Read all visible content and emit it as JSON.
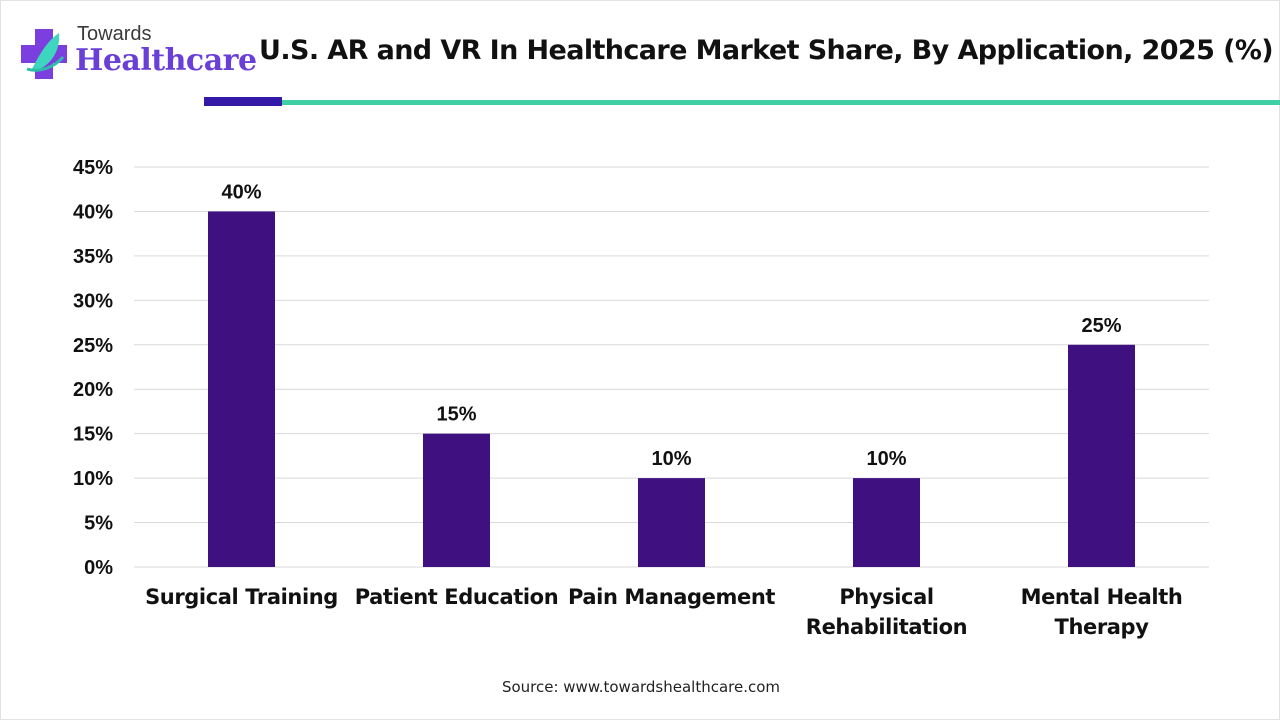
{
  "header": {
    "logo_top": "Towards",
    "logo_bottom": "Healthcare",
    "title": "U.S. AR and VR In Healthcare Market Share, By Application, 2025 (%)"
  },
  "colors": {
    "bar": "#3f1180",
    "accent_dark": "#3419a8",
    "accent_teal": "#3fcfa4",
    "logo_purple": "#6a3fd8"
  },
  "source": "Source: www.towardshealthcare.com",
  "chart_data": {
    "type": "bar",
    "title": "U.S. AR and VR In Healthcare Market Share, By Application, 2025 (%)",
    "xlabel": "",
    "ylabel": "",
    "categories": [
      [
        "Surgical Training"
      ],
      [
        "Patient Education"
      ],
      [
        "Pain Management"
      ],
      [
        "Physical",
        "Rehabilitation"
      ],
      [
        "Mental Health",
        "Therapy"
      ]
    ],
    "values": [
      40,
      15,
      10,
      10,
      25
    ],
    "data_labels": [
      "40%",
      "15%",
      "10%",
      "10%",
      "25%"
    ],
    "ylim": [
      0,
      45
    ],
    "yticks": [
      0,
      5,
      10,
      15,
      20,
      25,
      30,
      35,
      40,
      45
    ],
    "ytick_labels": [
      "0%",
      "5%",
      "10%",
      "15%",
      "20%",
      "25%",
      "30%",
      "35%",
      "40%",
      "45%"
    ],
    "grid": true,
    "legend": "none"
  }
}
